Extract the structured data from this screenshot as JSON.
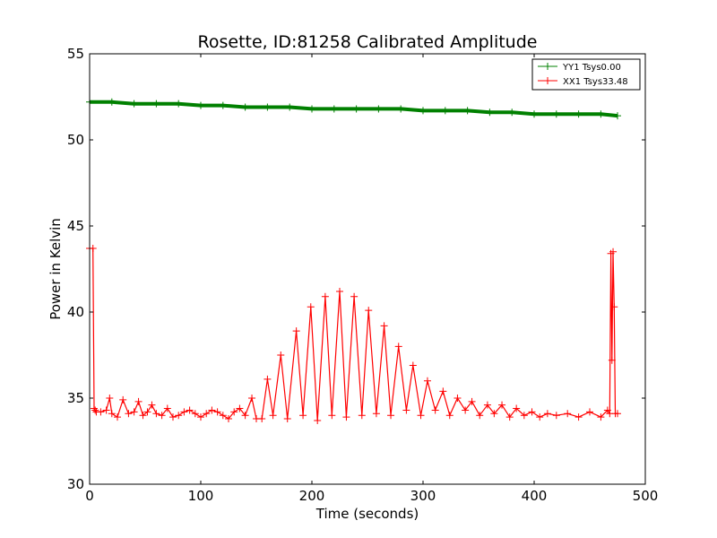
{
  "chart_data": {
    "type": "line",
    "title": "Rosette, ID:81258 Calibrated Amplitude",
    "xlabel": "Time (seconds)",
    "ylabel": "Power in Kelvin",
    "xlim": [
      0,
      500
    ],
    "ylim": [
      30,
      55
    ],
    "x_ticks": [
      "0",
      "100",
      "200",
      "300",
      "400",
      "500"
    ],
    "y_ticks": [
      "30",
      "35",
      "40",
      "45",
      "50",
      "55"
    ],
    "grid": false,
    "legend_position": "top-right",
    "series": [
      {
        "name": "YY1 Tsys0.00",
        "color": "#008000",
        "marker": "+",
        "x": [
          0,
          20,
          40,
          60,
          80,
          100,
          120,
          140,
          160,
          180,
          200,
          220,
          240,
          260,
          280,
          300,
          320,
          340,
          360,
          380,
          400,
          420,
          440,
          460,
          475
        ],
        "y": [
          52.2,
          52.2,
          52.1,
          52.1,
          52.1,
          52.0,
          52.0,
          51.9,
          51.9,
          51.9,
          51.8,
          51.8,
          51.8,
          51.8,
          51.8,
          51.7,
          51.7,
          51.7,
          51.6,
          51.6,
          51.5,
          51.5,
          51.5,
          51.5,
          51.4
        ]
      },
      {
        "name": "XX1 Tsys33.48",
        "color": "#ff0000",
        "marker": "+",
        "x": [
          0,
          3,
          4,
          5,
          6,
          10,
          15,
          18,
          20,
          25,
          30,
          35,
          40,
          44,
          48,
          52,
          56,
          60,
          65,
          70,
          75,
          80,
          85,
          90,
          95,
          100,
          105,
          110,
          115,
          120,
          125,
          130,
          135,
          140,
          146,
          150,
          155,
          160,
          165,
          172,
          178,
          186,
          192,
          199,
          205,
          212,
          218,
          225,
          231,
          238,
          245,
          251,
          258,
          265,
          271,
          278,
          285,
          291,
          298,
          304,
          311,
          318,
          324,
          331,
          338,
          344,
          351,
          358,
          364,
          371,
          378,
          384,
          391,
          398,
          405,
          412,
          420,
          430,
          440,
          450,
          460,
          466,
          468,
          469,
          470,
          471,
          472,
          473,
          475
        ],
        "y": [
          43.7,
          43.7,
          34.4,
          34.3,
          34.2,
          34.2,
          34.3,
          35.0,
          34.1,
          33.9,
          34.9,
          34.1,
          34.2,
          34.8,
          34.0,
          34.2,
          34.6,
          34.1,
          34.0,
          34.4,
          33.9,
          34.0,
          34.2,
          34.3,
          34.1,
          33.9,
          34.1,
          34.3,
          34.2,
          34.0,
          33.8,
          34.2,
          34.4,
          34.0,
          35.0,
          33.8,
          33.8,
          36.1,
          34.0,
          37.5,
          33.8,
          38.9,
          34.0,
          40.3,
          33.7,
          40.9,
          34.0,
          41.2,
          33.9,
          40.9,
          34.0,
          40.1,
          34.1,
          39.2,
          34.0,
          38.0,
          34.3,
          36.9,
          34.0,
          36.0,
          34.3,
          35.4,
          34.0,
          35.0,
          34.3,
          34.8,
          34.0,
          34.6,
          34.1,
          34.6,
          33.9,
          34.4,
          34.0,
          34.2,
          33.9,
          34.1,
          34.0,
          34.1,
          33.9,
          34.2,
          33.9,
          34.3,
          34.1,
          43.4,
          37.2,
          43.5,
          40.3,
          34.1,
          34.1
        ]
      }
    ]
  }
}
